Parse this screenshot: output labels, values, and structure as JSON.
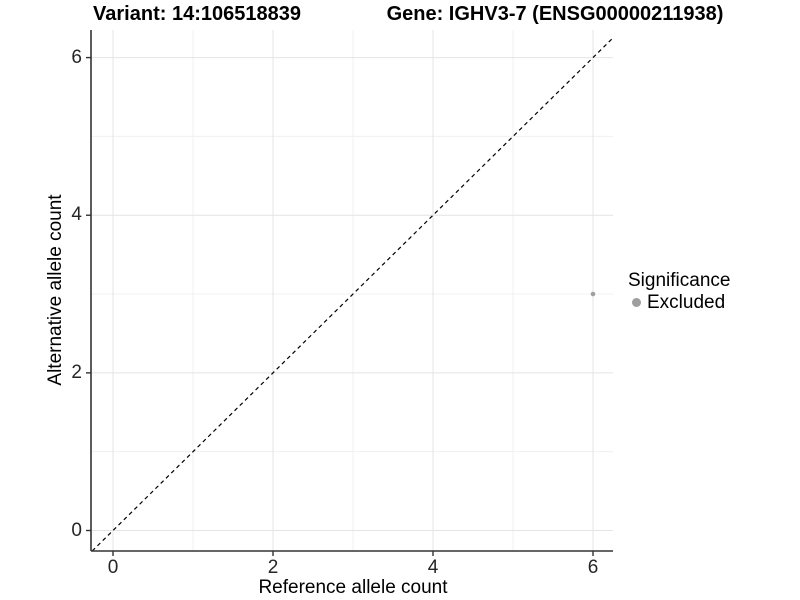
{
  "titles": {
    "left": "Variant: 14:106518839",
    "right": "Gene: IGHV3-7 (ENSG00000211938)"
  },
  "chart_data": {
    "type": "scatter",
    "xlabel": "Reference allele count",
    "ylabel": "Alternative allele count",
    "xlim": [
      -0.275,
      6.25
    ],
    "ylim": [
      -0.26,
      6.35
    ],
    "x_ticks": [
      0,
      2,
      4,
      6
    ],
    "y_ticks": [
      0,
      2,
      4,
      6
    ],
    "x_minor_ticks": [
      1,
      3,
      5
    ],
    "y_minor_ticks": [
      1,
      3,
      5
    ],
    "grid": true,
    "points": [
      {
        "x": 6,
        "y": 3,
        "significance": "Excluded"
      }
    ],
    "point_color": "#a0a0a0",
    "identity_line": {
      "slope": 1,
      "intercept": 0,
      "style": "dashed",
      "color": "#000000"
    },
    "legend": {
      "title": "Significance",
      "position": "right",
      "items": [
        {
          "label": "Excluded",
          "color": "#9e9e9e"
        }
      ]
    }
  },
  "colors": {
    "grid_major": "#e4e4e4",
    "grid_minor": "#f0f0f0",
    "axis_line": "#333333",
    "tick_text": "#262626"
  }
}
